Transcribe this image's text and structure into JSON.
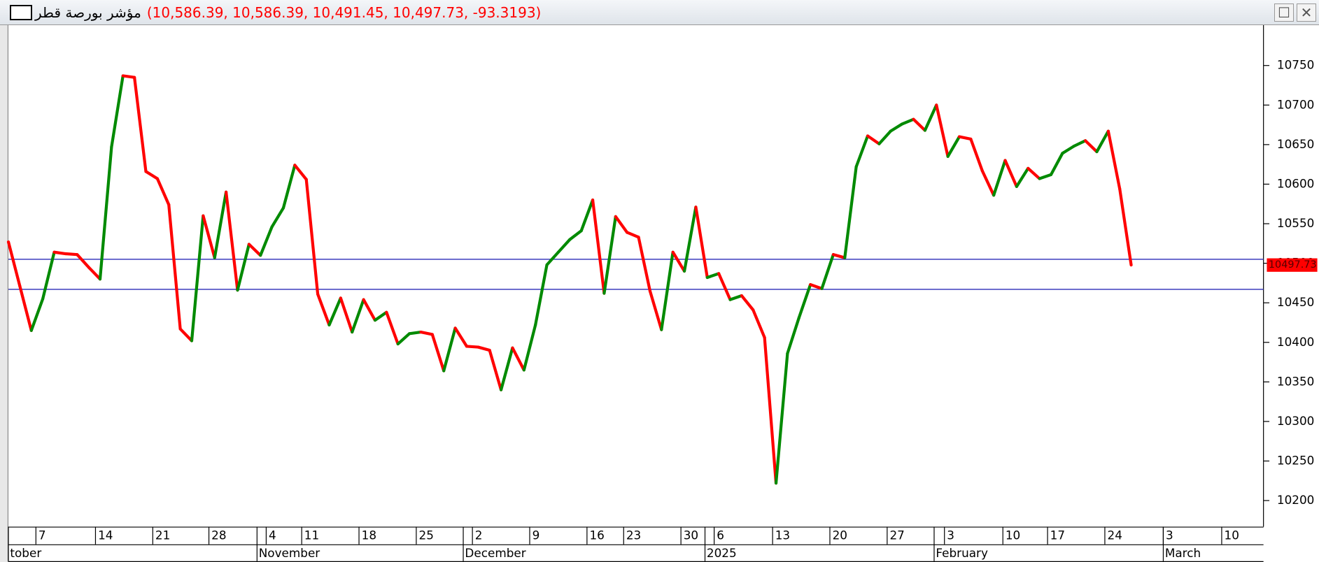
{
  "chart_data": {
    "type": "line",
    "title": "مؤشر بورصة قطر",
    "subtitle": "(10,586.39, 10,586.39, 10,491.45, 10,497.73, -93.3193)",
    "values": [
      10527,
      10471,
      10415,
      10455,
      10514,
      10512,
      10511,
      10495,
      10480,
      10647,
      10737,
      10735,
      10616,
      10607,
      10574,
      10417,
      10402,
      10560,
      10507,
      10590,
      10466,
      10524,
      10510,
      10546,
      10570,
      10624,
      10606,
      10461,
      10422,
      10456,
      10413,
      10454,
      10428,
      10438,
      10398,
      10411,
      10413,
      10410,
      10364,
      10418,
      10395,
      10394,
      10390,
      10340,
      10393,
      10365,
      10422,
      10498,
      10514,
      10530,
      10541,
      10580,
      10462,
      10559,
      10539,
      10533,
      10465,
      10416,
      10514,
      10490,
      10571,
      10482,
      10487,
      10454,
      10459,
      10441,
      10406,
      10222,
      10386,
      10431,
      10473,
      10468,
      10511,
      10507,
      10622,
      10661,
      10651,
      10667,
      10676,
      10682,
      10668,
      10700,
      10635,
      10660,
      10657,
      10617,
      10586,
      10630,
      10597,
      10620,
      10607,
      10612,
      10639,
      10648,
      10655,
      10641,
      10667,
      10594,
      10497.73
    ],
    "up_color": "#008a00",
    "down_color": "#ff0000",
    "xlim": [
      0,
      109.4
    ],
    "ylim": [
      10167,
      10801
    ],
    "yticks": [
      10200,
      10250,
      10300,
      10350,
      10400,
      10450,
      10500,
      10550,
      10600,
      10650,
      10700,
      10750
    ],
    "xticks": [
      {
        "value": 2.4,
        "label": "7"
      },
      {
        "value": 7.6,
        "label": "14"
      },
      {
        "value": 12.6,
        "label": "21"
      },
      {
        "value": 17.5,
        "label": "28"
      },
      {
        "value": 22.5,
        "label": "4"
      },
      {
        "value": 25.6,
        "label": "11"
      },
      {
        "value": 30.6,
        "label": "18"
      },
      {
        "value": 35.6,
        "label": "25"
      },
      {
        "value": 40.5,
        "label": "2"
      },
      {
        "value": 45.5,
        "label": "9"
      },
      {
        "value": 50.5,
        "label": "16"
      },
      {
        "value": 53.7,
        "label": "23"
      },
      {
        "value": 58.7,
        "label": "30"
      },
      {
        "value": 61.6,
        "label": "6"
      },
      {
        "value": 66.7,
        "label": "13"
      },
      {
        "value": 71.7,
        "label": "20"
      },
      {
        "value": 76.7,
        "label": "27"
      },
      {
        "value": 81.7,
        "label": "3"
      },
      {
        "value": 86.8,
        "label": "10"
      },
      {
        "value": 90.7,
        "label": "17"
      },
      {
        "value": 95.7,
        "label": "24"
      },
      {
        "value": 100.8,
        "label": "3"
      },
      {
        "value": 105.9,
        "label": "10"
      }
    ],
    "month_ticks": [
      {
        "value": 0,
        "label": "tober"
      },
      {
        "value": 21.7,
        "label": "November"
      },
      {
        "value": 39.7,
        "label": "December"
      },
      {
        "value": 60.8,
        "label": "2025"
      },
      {
        "value": 80.8,
        "label": "February"
      },
      {
        "value": 100.8,
        "label": "March"
      }
    ],
    "hlines": [
      10505,
      10467
    ],
    "hline_color": "#2a2ab8"
  }
}
